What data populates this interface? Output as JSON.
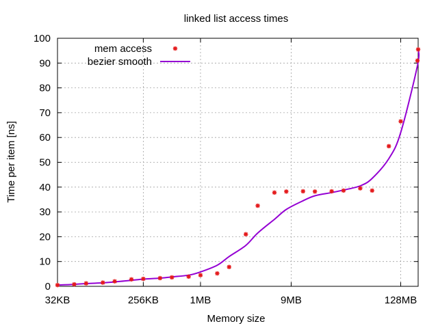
{
  "chart_data": {
    "type": "scatter",
    "title": "linked list access times",
    "xlabel": "Memory size",
    "ylabel": "Time per item [ns]",
    "x_scale": "log2",
    "xlim": [
      32,
      200000
    ],
    "ylim": [
      0,
      100
    ],
    "grid": true,
    "legend_position": "top-left",
    "x_ticks": [
      {
        "value": 32,
        "label": "32KB"
      },
      {
        "value": 256,
        "label": "256KB"
      },
      {
        "value": 1024,
        "label": "1MB"
      },
      {
        "value": 9216,
        "label": "9MB"
      },
      {
        "value": 131072,
        "label": "128MB"
      }
    ],
    "y_ticks": [
      0,
      10,
      20,
      30,
      40,
      50,
      60,
      70,
      80,
      90,
      100
    ],
    "series": [
      {
        "name": "mem access",
        "style": "points",
        "color": "#e41a1c",
        "x": [
          32,
          48,
          64,
          96,
          128,
          192,
          256,
          384,
          512,
          768,
          1024,
          1536,
          2048,
          3072,
          4096,
          6144,
          8192,
          12288,
          16384,
          24576,
          32768,
          49152,
          65536,
          98304,
          131072,
          196608,
          200000
        ],
        "y": [
          0.5,
          0.8,
          1.2,
          1.5,
          2.0,
          2.8,
          3.0,
          3.3,
          3.6,
          3.9,
          4.5,
          5.2,
          7.8,
          21.0,
          32.5,
          37.8,
          38.2,
          38.3,
          38.2,
          38.3,
          38.6,
          39.5,
          38.6,
          56.5,
          66.5,
          91.0,
          95.5
        ]
      },
      {
        "name": "bezier smooth",
        "style": "line",
        "color": "#9400d3",
        "x": [
          32,
          48,
          64,
          96,
          128,
          192,
          256,
          384,
          512,
          768,
          1024,
          1536,
          2048,
          3072,
          4096,
          6144,
          8192,
          12288,
          16384,
          24576,
          32768,
          49152,
          65536,
          98304,
          131072,
          196608,
          200000
        ],
        "y": [
          0.5,
          0.8,
          1.1,
          1.4,
          1.8,
          2.4,
          2.9,
          3.3,
          3.8,
          4.5,
          5.8,
          8.5,
          12.0,
          16.5,
          21.5,
          27.0,
          31.0,
          34.5,
          36.5,
          37.8,
          38.8,
          40.5,
          43.5,
          51.5,
          62.0,
          89.0,
          95.5
        ]
      }
    ]
  }
}
